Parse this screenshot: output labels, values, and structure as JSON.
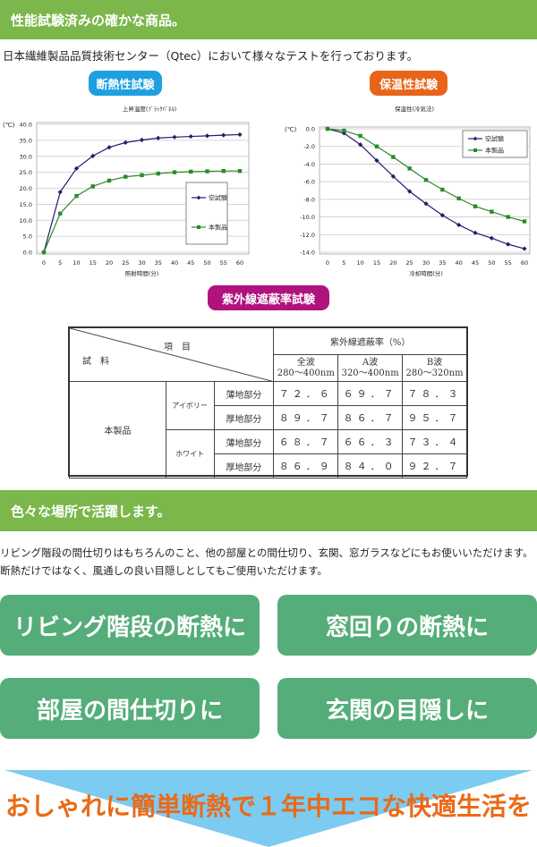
{
  "section1": {
    "title": "性能試験済みの確かな商品。",
    "intro": "日本繊維製品品質技術センター（Qtec）において様々なテストを行っております。",
    "pill_left": "断熱性試験",
    "pill_right": "保温性試験",
    "pill_uv": "紫外線遮蔽率試験"
  },
  "colors": {
    "section_green": "#7bb74b",
    "pill_blue": "#1e9fe0",
    "pill_orange": "#e8641a",
    "pill_magenta": "#b0127e",
    "button_green": "#55ad79",
    "arrow_blue": "#7ccbf1",
    "cta_orange": "#ea6a17",
    "series_blank": "#1f1f6e",
    "series_product": "#2a8a2a"
  },
  "chart_data": [
    {
      "type": "line",
      "title": "上昇温度(ﾌﾞﾗｯｸﾊﾟﾈﾙ)",
      "unit_label": "(℃)",
      "xlabel": "照射時間(分)",
      "ylabel": "",
      "x": [
        0,
        5,
        10,
        15,
        20,
        25,
        30,
        35,
        40,
        45,
        50,
        55,
        60
      ],
      "yticks": [
        "40.0",
        "35.0",
        "30.0",
        "25.0",
        "20.0",
        "15.0",
        "10.0",
        "5.0",
        "0.0"
      ],
      "ylim": [
        0,
        40
      ],
      "grid": true,
      "legend_position": "right-inside",
      "series": [
        {
          "name": "空試験",
          "marker": "diamond",
          "values": [
            0,
            18.8,
            26.2,
            30.1,
            32.8,
            34.3,
            35.1,
            35.7,
            36.0,
            36.2,
            36.4,
            36.6,
            36.8
          ]
        },
        {
          "name": "本製品",
          "marker": "square",
          "values": [
            0,
            12.1,
            17.6,
            20.6,
            22.4,
            23.6,
            24.1,
            24.6,
            25.0,
            25.2,
            25.3,
            25.4,
            25.4
          ]
        }
      ]
    },
    {
      "type": "line",
      "title": "保温性(冷気法)",
      "unit_label": "(℃)",
      "xlabel": "冷却時間(分)",
      "ylabel": "",
      "x": [
        0,
        5,
        10,
        15,
        20,
        25,
        30,
        35,
        40,
        45,
        50,
        55,
        60
      ],
      "yticks": [
        "0.0",
        "-2.0",
        "-4.0",
        "-6.0",
        "-8.0",
        "-10.0",
        "-12.0",
        "-14.0"
      ],
      "ylim": [
        -14,
        0
      ],
      "grid": true,
      "legend_position": "top-right-inside",
      "series": [
        {
          "name": "空試験",
          "marker": "diamond",
          "values": [
            0,
            -0.5,
            -1.8,
            -3.6,
            -5.4,
            -7.1,
            -8.5,
            -9.8,
            -10.9,
            -11.8,
            -12.4,
            -13.1,
            -13.6
          ]
        },
        {
          "name": "本製品",
          "marker": "square",
          "values": [
            0,
            -0.2,
            -0.8,
            -2.0,
            -3.2,
            -4.5,
            -5.8,
            -6.9,
            -7.9,
            -8.8,
            -9.4,
            -10.0,
            -10.5
          ]
        }
      ]
    },
    {
      "type": "table",
      "title": "紫外線遮蔽率試験",
      "header": {
        "item": "項　目",
        "sample": "試　料",
        "group": "紫外線遮蔽率（%）",
        "columns": [
          {
            "name": "全波",
            "range": "280〜400nm"
          },
          {
            "name": "A波",
            "range": "320〜400nm"
          },
          {
            "name": "B波",
            "range": "280〜320nm"
          }
        ]
      },
      "product": "本製品",
      "rows": [
        {
          "color": "アイボリー",
          "part": "薄地部分",
          "values": [
            "７２．６",
            "６９．７",
            "７８．３"
          ]
        },
        {
          "color": "アイボリー",
          "part": "厚地部分",
          "values": [
            "８９．７",
            "８６．７",
            "９５．７"
          ]
        },
        {
          "color": "ホワイト",
          "part": "薄地部分",
          "values": [
            "６８．７",
            "６６．３",
            "７３．４"
          ]
        },
        {
          "color": "ホワイト",
          "part": "厚地部分",
          "values": [
            "８６．９",
            "８４．０",
            "９２．７"
          ]
        }
      ]
    }
  ],
  "section2": {
    "title": "色々な場所で活躍します。",
    "desc_line1": "リビング階段の間仕切りはもちろんのこと、他の部屋との間仕切り、玄関、窓ガラスなどにもお使いいただけます。",
    "desc_line2": "断熱だけではなく、風通しの良い目隠しとしてもご使用いただけます。",
    "buttons": [
      "リビング階段の断熱に",
      "窓回りの断熱に",
      "部屋の間仕切りに",
      "玄関の目隠しに"
    ],
    "cta": "おしゃれに簡単断熱で１年中エコな快適生活を"
  }
}
